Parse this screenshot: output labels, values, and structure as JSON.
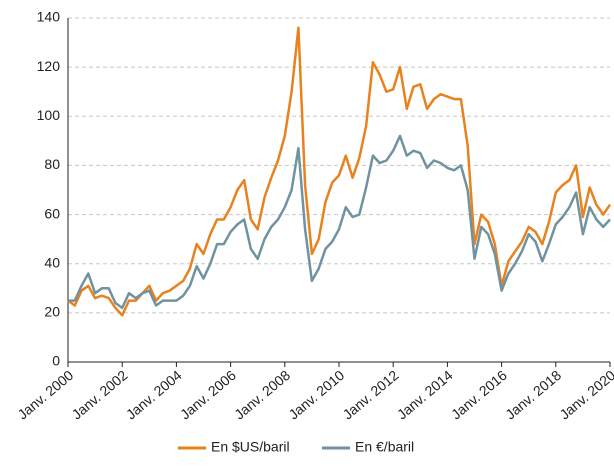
{
  "chart_data": {
    "type": "line",
    "categories": [
      "Janv. 2000",
      null,
      null,
      null,
      null,
      null,
      null,
      null,
      "Janv. 2002",
      null,
      null,
      null,
      null,
      null,
      null,
      null,
      "Janv. 2004",
      null,
      null,
      null,
      null,
      null,
      null,
      null,
      "Janv. 2006",
      null,
      null,
      null,
      null,
      null,
      null,
      null,
      "Janv. 2008",
      null,
      null,
      null,
      null,
      null,
      null,
      null,
      "Janv. 2010",
      null,
      null,
      null,
      null,
      null,
      null,
      null,
      "Janv. 2012",
      null,
      null,
      null,
      null,
      null,
      null,
      null,
      "Janv. 2014",
      null,
      null,
      null,
      null,
      null,
      null,
      null,
      "Janv. 2016",
      null,
      null,
      null,
      null,
      null,
      null,
      null,
      "Janv. 2018",
      null,
      null,
      null,
      null,
      null,
      null,
      null,
      "Janv. 2020"
    ],
    "series": [
      {
        "name": "En $US/baril",
        "color": "#e8821e",
        "values": [
          25,
          23,
          29,
          31,
          26,
          27,
          26,
          22,
          19,
          25,
          25,
          28,
          31,
          25,
          28,
          29,
          31,
          33,
          38,
          48,
          44,
          52,
          58,
          58,
          63,
          70,
          74,
          58,
          54,
          67,
          75,
          82,
          92,
          110,
          136,
          72,
          44,
          50,
          65,
          73,
          76,
          84,
          75,
          83,
          96,
          122,
          117,
          110,
          111,
          120,
          103,
          112,
          113,
          103,
          107,
          109,
          108,
          107,
          107,
          88,
          48,
          60,
          57,
          48,
          31,
          41,
          45,
          49,
          55,
          53,
          48,
          57,
          69,
          72,
          74,
          80,
          59,
          71,
          64,
          60,
          64
        ]
      },
      {
        "name": "En €/baril",
        "color": "#6f939f",
        "values": [
          25,
          25,
          31,
          36,
          28,
          30,
          30,
          24,
          22,
          28,
          26,
          28,
          29,
          23,
          25,
          25,
          25,
          27,
          31,
          39,
          34,
          40,
          48,
          48,
          53,
          56,
          58,
          46,
          42,
          50,
          55,
          58,
          63,
          70,
          87,
          54,
          33,
          38,
          46,
          49,
          54,
          63,
          59,
          60,
          71,
          84,
          81,
          82,
          86,
          92,
          84,
          86,
          85,
          79,
          82,
          81,
          79,
          78,
          80,
          70,
          42,
          55,
          52,
          44,
          29,
          36,
          40,
          45,
          52,
          49,
          41,
          48,
          56,
          59,
          63,
          69,
          52,
          63,
          58,
          55,
          58
        ]
      }
    ],
    "ylim": [
      0,
      140
    ],
    "yticks": [
      0,
      20,
      40,
      60,
      80,
      100,
      120,
      140
    ],
    "grid": true
  }
}
